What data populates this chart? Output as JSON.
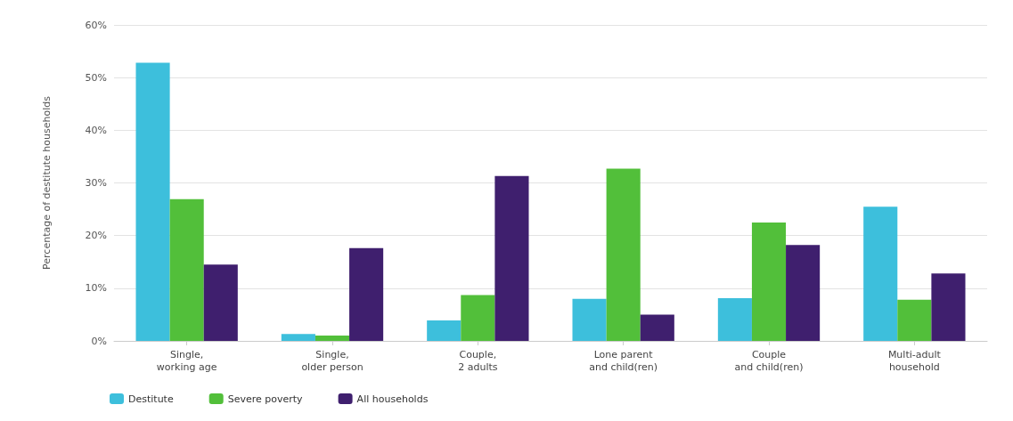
{
  "chart_data": {
    "type": "bar",
    "ylabel": "Percentage of destitute households",
    "categories": [
      "Single,\nworking age",
      "Single,\nolder person",
      "Couple,\n2 adults",
      "Lone parent\nand child(ren)",
      "Couple\nand child(ren)",
      "Multi-adult\nhousehold"
    ],
    "series": [
      {
        "name": "Destitute",
        "color": "#3dbfdc",
        "values": [
          52.8,
          1.3,
          3.9,
          8.0,
          8.1,
          25.5
        ]
      },
      {
        "name": "Severe poverty",
        "color": "#52bf3a",
        "values": [
          26.9,
          1.0,
          8.7,
          32.7,
          22.5,
          7.8
        ]
      },
      {
        "name": "All households",
        "color": "#3f1f6e",
        "values": [
          14.5,
          17.6,
          31.3,
          5.0,
          18.2,
          12.8
        ]
      }
    ],
    "ylim": [
      0,
      60
    ],
    "yticks": [
      {
        "value": 0,
        "label": "0%"
      },
      {
        "value": 10,
        "label": "10%"
      },
      {
        "value": 20,
        "label": "20%"
      },
      {
        "value": 30,
        "label": "30%"
      },
      {
        "value": 40,
        "label": "40%"
      },
      {
        "value": 50,
        "label": "50%"
      },
      {
        "value": 60,
        "label": "60%"
      }
    ],
    "grid": "y",
    "legend": "bottom left"
  }
}
